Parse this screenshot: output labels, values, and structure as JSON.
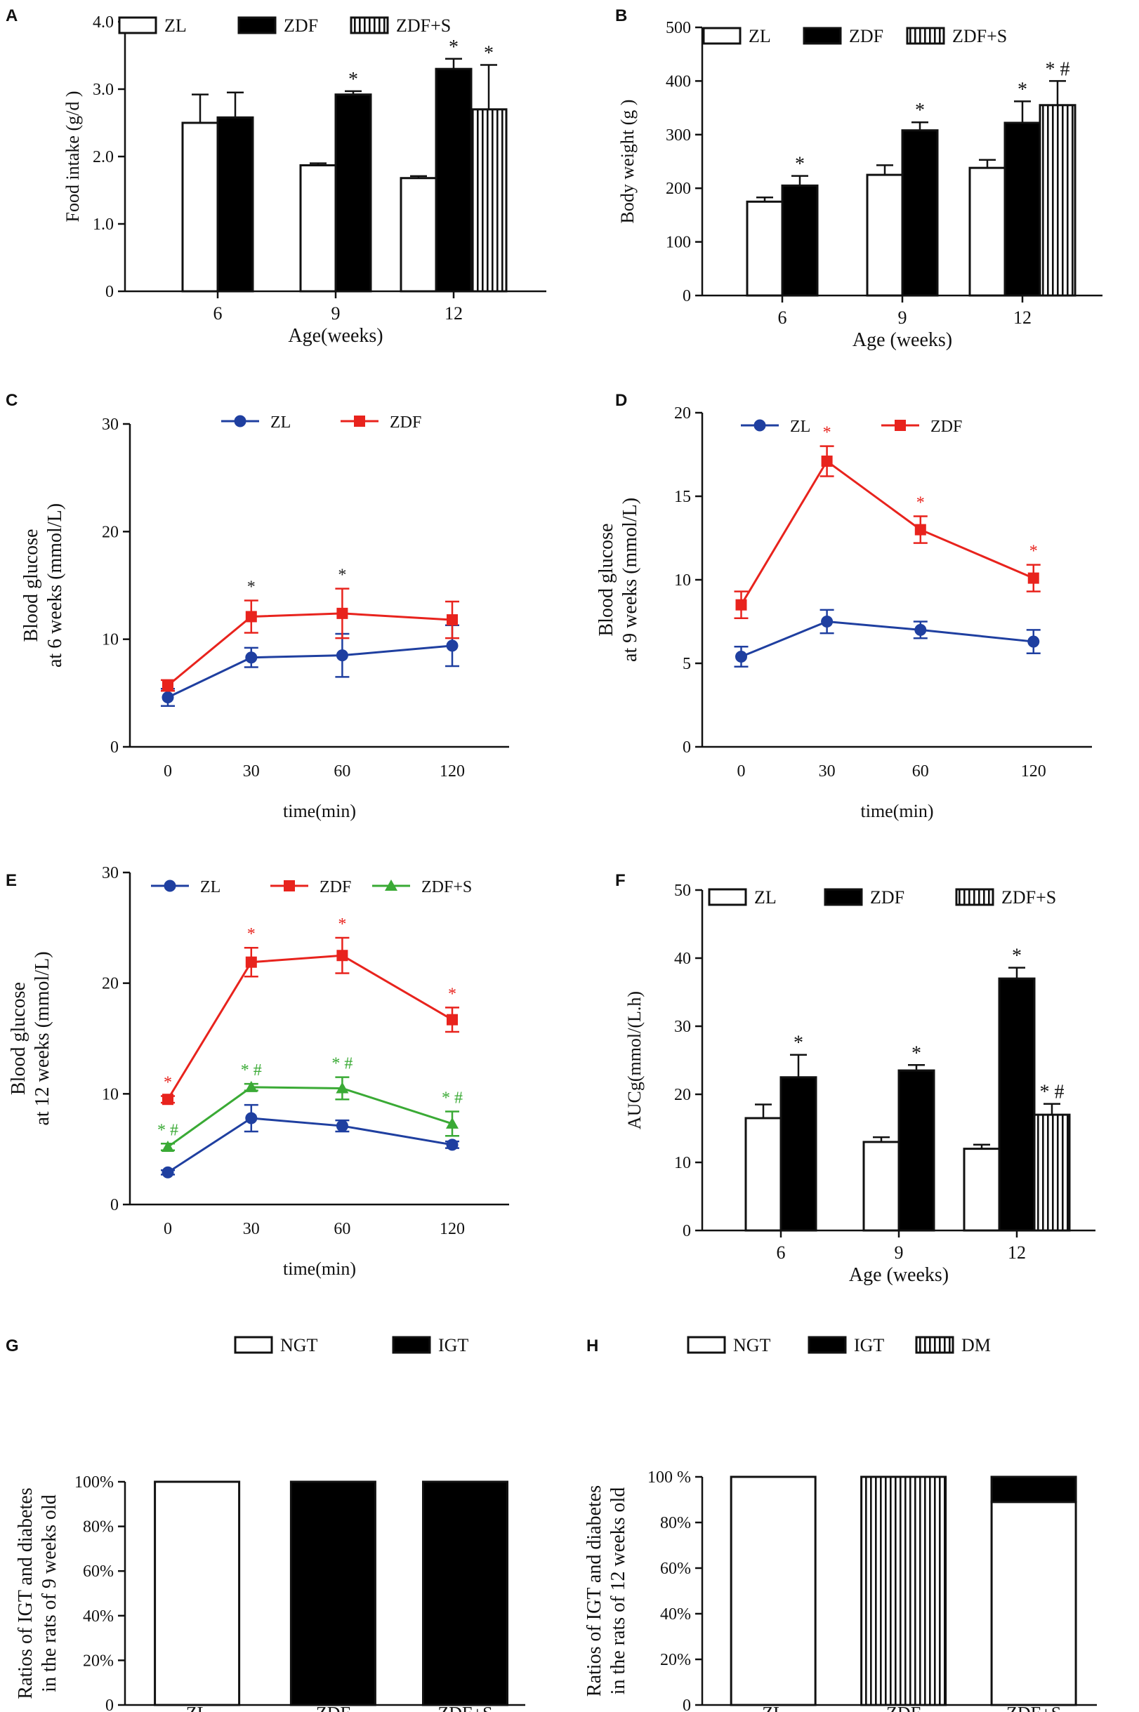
{
  "chart_data": [
    {
      "id": "A",
      "type": "bar",
      "letter": "A",
      "title": "",
      "xlabel": "Age(weeks)",
      "ylabel": "Food   intake (g/d )",
      "categories": [
        "6",
        "9",
        "12"
      ],
      "ylim": [
        0,
        4.0
      ],
      "yticks": [
        0,
        1.0,
        2.0,
        3.0,
        4.0
      ],
      "ytick_labels": [
        "0",
        "1.0",
        "2.0",
        "3.0",
        "4.0"
      ],
      "series": [
        {
          "name": "ZL",
          "style": "open",
          "values": [
            2.5,
            1.87,
            1.68
          ],
          "errors": [
            0.42,
            0.03,
            0.03
          ],
          "annotations": [
            "",
            "",
            ""
          ]
        },
        {
          "name": "ZDF",
          "style": "solid",
          "values": [
            2.58,
            2.92,
            3.3
          ],
          "errors": [
            0.37,
            0.05,
            0.15
          ],
          "annotations": [
            "",
            "*",
            "*"
          ]
        },
        {
          "name": "ZDF+S",
          "style": "striped",
          "values": [
            null,
            null,
            2.7
          ],
          "errors": [
            null,
            null,
            0.66
          ],
          "annotations": [
            "",
            "",
            "*"
          ]
        }
      ]
    },
    {
      "id": "B",
      "type": "bar",
      "letter": "B",
      "title": "",
      "xlabel": "Age  (weeks)",
      "ylabel": "Body weight (g )",
      "categories": [
        "6",
        "9",
        "12"
      ],
      "ylim": [
        0,
        500
      ],
      "yticks": [
        0,
        100,
        200,
        300,
        400,
        500
      ],
      "ytick_labels": [
        "0",
        "100",
        "200",
        "300",
        "400",
        "500"
      ],
      "series": [
        {
          "name": "ZL",
          "style": "open",
          "values": [
            175,
            225,
            238
          ],
          "errors": [
            8,
            18,
            15
          ],
          "annotations": [
            "",
            "",
            ""
          ]
        },
        {
          "name": "ZDF",
          "style": "solid",
          "values": [
            205,
            308,
            322
          ],
          "errors": [
            18,
            15,
            40
          ],
          "annotations": [
            "*",
            "*",
            "*"
          ]
        },
        {
          "name": "ZDF+S",
          "style": "striped",
          "values": [
            null,
            null,
            355
          ],
          "errors": [
            null,
            null,
            45
          ],
          "annotations": [
            "",
            "",
            "* #"
          ]
        }
      ]
    },
    {
      "id": "C",
      "type": "line",
      "letter": "C",
      "title": "",
      "xlabel": "time(min)",
      "ylabel": "Blood glucose",
      "ylabel2": "at 6 weeks (mmol/L)",
      "categories": [
        "0",
        "30",
        "60",
        "120"
      ],
      "ylim": [
        0,
        30
      ],
      "yticks": [
        0,
        10,
        20,
        30
      ],
      "ytick_labels": [
        "0",
        "10",
        "20",
        "30"
      ],
      "series": [
        {
          "name": "ZL",
          "color": "#1f3fa0",
          "marker": "circle",
          "values": [
            4.6,
            8.3,
            8.5,
            9.4
          ],
          "errors": [
            0.8,
            0.9,
            2.0,
            1.9
          ],
          "annotations": [
            "",
            "",
            "",
            ""
          ]
        },
        {
          "name": "ZDF",
          "color": "#e8231d",
          "marker": "square",
          "values": [
            5.7,
            12.1,
            12.4,
            11.8
          ],
          "errors": [
            0.5,
            1.5,
            2.3,
            1.7
          ],
          "annotations": [
            "",
            "*",
            "*",
            ""
          ]
        }
      ],
      "annotation_color": "#222222"
    },
    {
      "id": "D",
      "type": "line",
      "letter": "D",
      "title": "",
      "xlabel": "time(min)",
      "ylabel": "Blood    glucose",
      "ylabel2": "at  9  weeks (mmol/L)",
      "categories": [
        "0",
        "30",
        "60",
        "120"
      ],
      "ylim": [
        0,
        20
      ],
      "yticks": [
        0,
        5,
        10,
        15,
        20
      ],
      "ytick_labels": [
        "0",
        "5",
        "10",
        "15",
        "20"
      ],
      "series": [
        {
          "name": "ZL",
          "color": "#1f3fa0",
          "marker": "circle",
          "values": [
            5.4,
            7.5,
            7.0,
            6.3
          ],
          "errors": [
            0.6,
            0.7,
            0.5,
            0.7
          ],
          "annotations": [
            "",
            "",
            "",
            ""
          ]
        },
        {
          "name": "ZDF",
          "color": "#e8231d",
          "marker": "square",
          "values": [
            8.5,
            17.1,
            13.0,
            10.1
          ],
          "errors": [
            0.8,
            0.9,
            0.8,
            0.8
          ],
          "annotations": [
            "",
            "*",
            "*",
            "*"
          ]
        }
      ],
      "annotation_color": "#e8231d"
    },
    {
      "id": "E",
      "type": "line",
      "letter": "E",
      "title": "",
      "xlabel": "time(min)",
      "ylabel": "Blood glucose",
      "ylabel2": "at 12 weeks (mmol/L)",
      "categories": [
        "0",
        "30",
        "60",
        "120"
      ],
      "ylim": [
        0,
        30
      ],
      "yticks": [
        0,
        10,
        20,
        30
      ],
      "ytick_labels": [
        "0",
        "10",
        "20",
        "30"
      ],
      "series": [
        {
          "name": "ZL",
          "color": "#1f3fa0",
          "marker": "circle",
          "values": [
            2.9,
            7.8,
            7.1,
            5.4
          ],
          "errors": [
            0.2,
            1.2,
            0.5,
            0.3
          ],
          "annotations": [
            "",
            "",
            "",
            ""
          ]
        },
        {
          "name": "ZDF",
          "color": "#e8231d",
          "marker": "square",
          "values": [
            9.5,
            21.9,
            22.5,
            16.7
          ],
          "errors": [
            0.3,
            1.3,
            1.6,
            1.1
          ],
          "annotations": [
            "*",
            "*",
            "*",
            "*"
          ]
        },
        {
          "name": "ZDF+S",
          "color": "#3aaa35",
          "marker": "triangle",
          "values": [
            5.2,
            10.6,
            10.5,
            7.3
          ],
          "errors": [
            0.3,
            0.3,
            1.0,
            1.1
          ],
          "annotations": [
            "* #",
            "* #",
            "* #",
            "* #"
          ]
        }
      ]
    },
    {
      "id": "F",
      "type": "bar",
      "letter": "F",
      "title": "",
      "xlabel": "Age  (weeks)",
      "ylabel": "AUCg(mmol/(L.h)",
      "categories": [
        "6",
        "9",
        "12"
      ],
      "ylim": [
        0,
        50
      ],
      "yticks": [
        0,
        10,
        20,
        30,
        40,
        50
      ],
      "ytick_labels": [
        "0",
        "10",
        "20",
        "30",
        "40",
        "50"
      ],
      "series": [
        {
          "name": "ZL",
          "style": "open",
          "values": [
            16.5,
            13.0,
            12.0
          ],
          "errors": [
            2.0,
            0.7,
            0.6
          ],
          "annotations": [
            "",
            "",
            ""
          ]
        },
        {
          "name": "ZDF",
          "style": "solid",
          "values": [
            22.5,
            23.5,
            37.0
          ],
          "errors": [
            3.3,
            0.8,
            1.6
          ],
          "annotations": [
            "*",
            "*",
            "*"
          ]
        },
        {
          "name": "ZDF+S",
          "style": "striped",
          "values": [
            null,
            null,
            17.0
          ],
          "errors": [
            null,
            null,
            1.6
          ],
          "annotations": [
            "",
            "",
            "* #"
          ]
        }
      ]
    },
    {
      "id": "G",
      "type": "bar",
      "letter": "G",
      "stacked": true,
      "title": "",
      "xlabel": "",
      "ylabel": "Ratios  of  IGT  and  diabetes",
      "ylabel2": "in the  rats of  9 weeks old",
      "categories": [
        "ZL",
        "ZDF",
        "ZDF+S"
      ],
      "ylim": [
        0,
        100
      ],
      "yticks": [
        0,
        20,
        40,
        60,
        80,
        100
      ],
      "ytick_labels": [
        "0",
        "20%",
        "40%",
        "60%",
        "80%",
        "100%"
      ],
      "series": [
        {
          "name": "NGT",
          "style": "open",
          "values": [
            100,
            0,
            0
          ]
        },
        {
          "name": "IGT",
          "style": "solid",
          "values": [
            0,
            100,
            100
          ]
        }
      ]
    },
    {
      "id": "H",
      "type": "bar",
      "letter": "H",
      "stacked": true,
      "title": "",
      "xlabel": "",
      "ylabel": "Ratios  of  IGT  and  diabetes",
      "ylabel2": "in the rats  of  12 weeks  old",
      "categories": [
        "ZL",
        "ZDF",
        "ZDF+S"
      ],
      "ylim": [
        0,
        100
      ],
      "yticks": [
        0,
        20,
        40,
        60,
        80,
        100
      ],
      "ytick_labels": [
        "0",
        "20%",
        "40%",
        "60%",
        "80%",
        "100 %"
      ],
      "series": [
        {
          "name": "NGT",
          "style": "open",
          "values": [
            100,
            0,
            89
          ]
        },
        {
          "name": "IGT",
          "style": "solid",
          "values": [
            0,
            0,
            11
          ]
        },
        {
          "name": "DM",
          "style": "striped",
          "values": [
            0,
            100,
            0
          ]
        }
      ]
    }
  ]
}
